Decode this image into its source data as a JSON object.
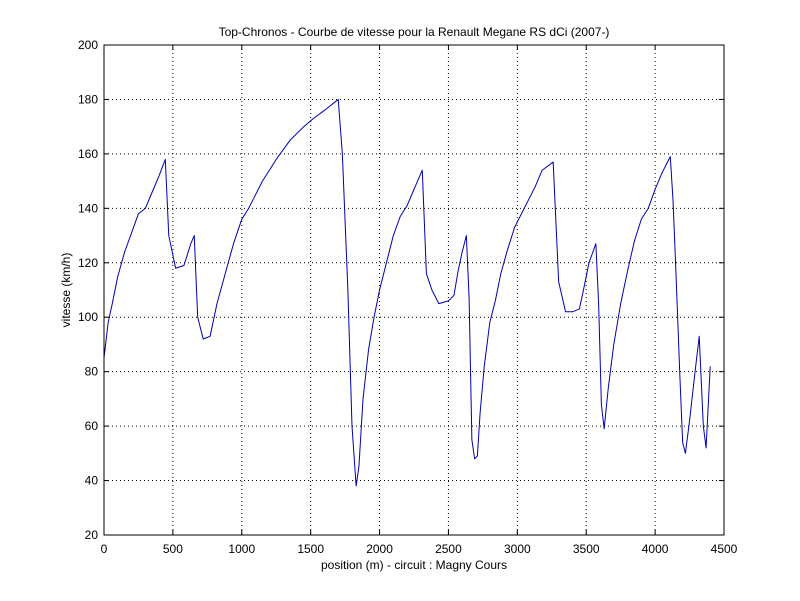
{
  "chart_data": {
    "type": "line",
    "title": "Top-Chronos - Courbe de vitesse pour la Renault Megane RS dCi (2007-)",
    "xlabel": "position (m) - circuit : Magny Cours",
    "ylabel": "vitesse (km/h)",
    "xlim": [
      0,
      4500
    ],
    "ylim": [
      20,
      200
    ],
    "xticks": [
      "0",
      "500",
      "1000",
      "1500",
      "2000",
      "2500",
      "3000",
      "3500",
      "4000",
      "4500"
    ],
    "yticks": [
      "20",
      "40",
      "60",
      "80",
      "100",
      "120",
      "140",
      "160",
      "180",
      "200"
    ],
    "grid": true,
    "line_color": "#0000b0",
    "series": [
      {
        "x": [
          0,
          30,
          60,
          100,
          150,
          200,
          250,
          300,
          350,
          400,
          445,
          470,
          520,
          580,
          630,
          655,
          680,
          720,
          770,
          820,
          880,
          940,
          1000,
          1050,
          1150,
          1250,
          1350,
          1450,
          1520,
          1600,
          1700,
          1730,
          1770,
          1800,
          1830,
          1850,
          1880,
          1920,
          1960,
          2000,
          2050,
          2100,
          2150,
          2200,
          2250,
          2310,
          2340,
          2380,
          2430,
          2500,
          2540,
          2570,
          2600,
          2630,
          2650,
          2670,
          2690,
          2710,
          2730,
          2760,
          2800,
          2840,
          2880,
          2930,
          2980,
          3030,
          3080,
          3130,
          3180,
          3260,
          3300,
          3350,
          3400,
          3450,
          3480,
          3520,
          3570,
          3590,
          3610,
          3630,
          3660,
          3700,
          3750,
          3800,
          3850,
          3900,
          3950,
          4000,
          4050,
          4110,
          4130,
          4150,
          4180,
          4200,
          4220,
          4250,
          4290,
          4320,
          4350,
          4370,
          4400
        ],
        "y": [
          85,
          98,
          105,
          115,
          124,
          131,
          138,
          140,
          146,
          152,
          158,
          130,
          118,
          119,
          127,
          130,
          100,
          92,
          93,
          105,
          116,
          127,
          136,
          140,
          150,
          158,
          165,
          170,
          173,
          176,
          180,
          160,
          110,
          60,
          38,
          45,
          70,
          88,
          100,
          110,
          120,
          130,
          137,
          141,
          147,
          154,
          116,
          110,
          105,
          106,
          108,
          117,
          124,
          130,
          107,
          55,
          48,
          49,
          65,
          82,
          98,
          106,
          116,
          125,
          133,
          138,
          143,
          148,
          154,
          157,
          113,
          102,
          102,
          103,
          110,
          120,
          127,
          105,
          68,
          59,
          74,
          90,
          105,
          117,
          128,
          136,
          140,
          147,
          153,
          159,
          143,
          118,
          78,
          54,
          50,
          62,
          80,
          93,
          60,
          52,
          82
        ]
      }
    ]
  }
}
